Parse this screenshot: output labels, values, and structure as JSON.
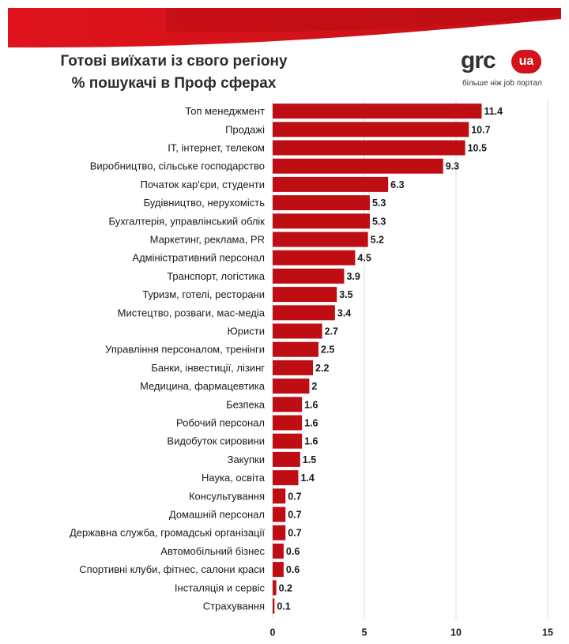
{
  "header": {
    "title_line1": "Готові виїхати із свого регіону",
    "title_line2": "% пошукачі в Проф сферах"
  },
  "logo": {
    "wordmark": "grc",
    "badge": "ua",
    "tagline": "більше ніж job портал"
  },
  "colors": {
    "bar": "#bf0d14",
    "brand_red": "#d3121b"
  },
  "chart_data": {
    "type": "bar",
    "orientation": "horizontal",
    "categories": [
      "Топ менеджмент",
      "Продажі",
      "IT, інтернет, телеком",
      "Виробництво, сільське господарство",
      "Початок кар'єри, студенти",
      "Будівництво, нерухомість",
      "Бухгалтерія, управлінський облік",
      "Маркетинг, реклама, PR",
      "Адміністративний персонал",
      "Транспорт, логістика",
      "Туризм, готелі, ресторани",
      "Мистецтво, розваги, мас-медіа",
      "Юристи",
      "Управління персоналом, тренінги",
      "Банки, інвестиції, лізинг",
      "Медицина, фармацевтика",
      "Безпека",
      "Робочий персонал",
      "Видобуток сировини",
      "Закупки",
      "Наука, освіта",
      "Консультування",
      "Домашній персонал",
      "Державна служба, громадські організації",
      "Автомобільний бізнес",
      "Спортивні клуби, фітнес, салони краси",
      "Інсталяція и сервіс",
      "Страхування"
    ],
    "values": [
      11.4,
      10.7,
      10.5,
      9.3,
      6.3,
      5.3,
      5.3,
      5.2,
      4.5,
      3.9,
      3.5,
      3.4,
      2.7,
      2.5,
      2.2,
      2,
      1.6,
      1.6,
      1.6,
      1.5,
      1.4,
      0.7,
      0.7,
      0.7,
      0.6,
      0.6,
      0.2,
      0.1
    ],
    "value_labels": [
      "11.4",
      "10.7",
      "10.5",
      "9.3",
      "6.3",
      "5.3",
      "5.3",
      "5.2",
      "4.5",
      "3.9",
      "3.5",
      "3.4",
      "2.7",
      "2.5",
      "2.2",
      "2",
      "1.6",
      "1.6",
      "1.6",
      "1.5",
      "1.4",
      "0.7",
      "0.7",
      "0.7",
      "0.6",
      "0.6",
      "0.2",
      "0.1"
    ],
    "xlim": [
      0,
      15
    ],
    "xticks": [
      0,
      5,
      10,
      15
    ],
    "xtick_labels": [
      "0",
      "5",
      "10",
      "15"
    ],
    "grid": true,
    "legend": "none"
  }
}
